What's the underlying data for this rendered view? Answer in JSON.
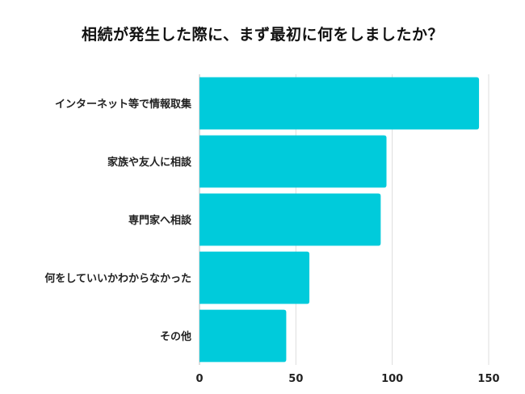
{
  "chart_data": {
    "type": "bar",
    "orientation": "horizontal",
    "title": "相続が発生した際に、まず最初に何をしましたか？",
    "xlabel": "",
    "ylabel": "",
    "categories": [
      "インターネット等で情報取集",
      "家族や友人に相談",
      "専門家へ相談",
      "何をしていいかわからなかった",
      "その他"
    ],
    "values": [
      145,
      97,
      94,
      57,
      45
    ],
    "xlim": [
      0,
      150
    ],
    "xticks": [
      0,
      50,
      100,
      150
    ],
    "grid": true,
    "legend": "none",
    "bar_color": "#00CBDB",
    "grid_color": "#DDDDDD",
    "axis_color": "#BBBBBB"
  }
}
